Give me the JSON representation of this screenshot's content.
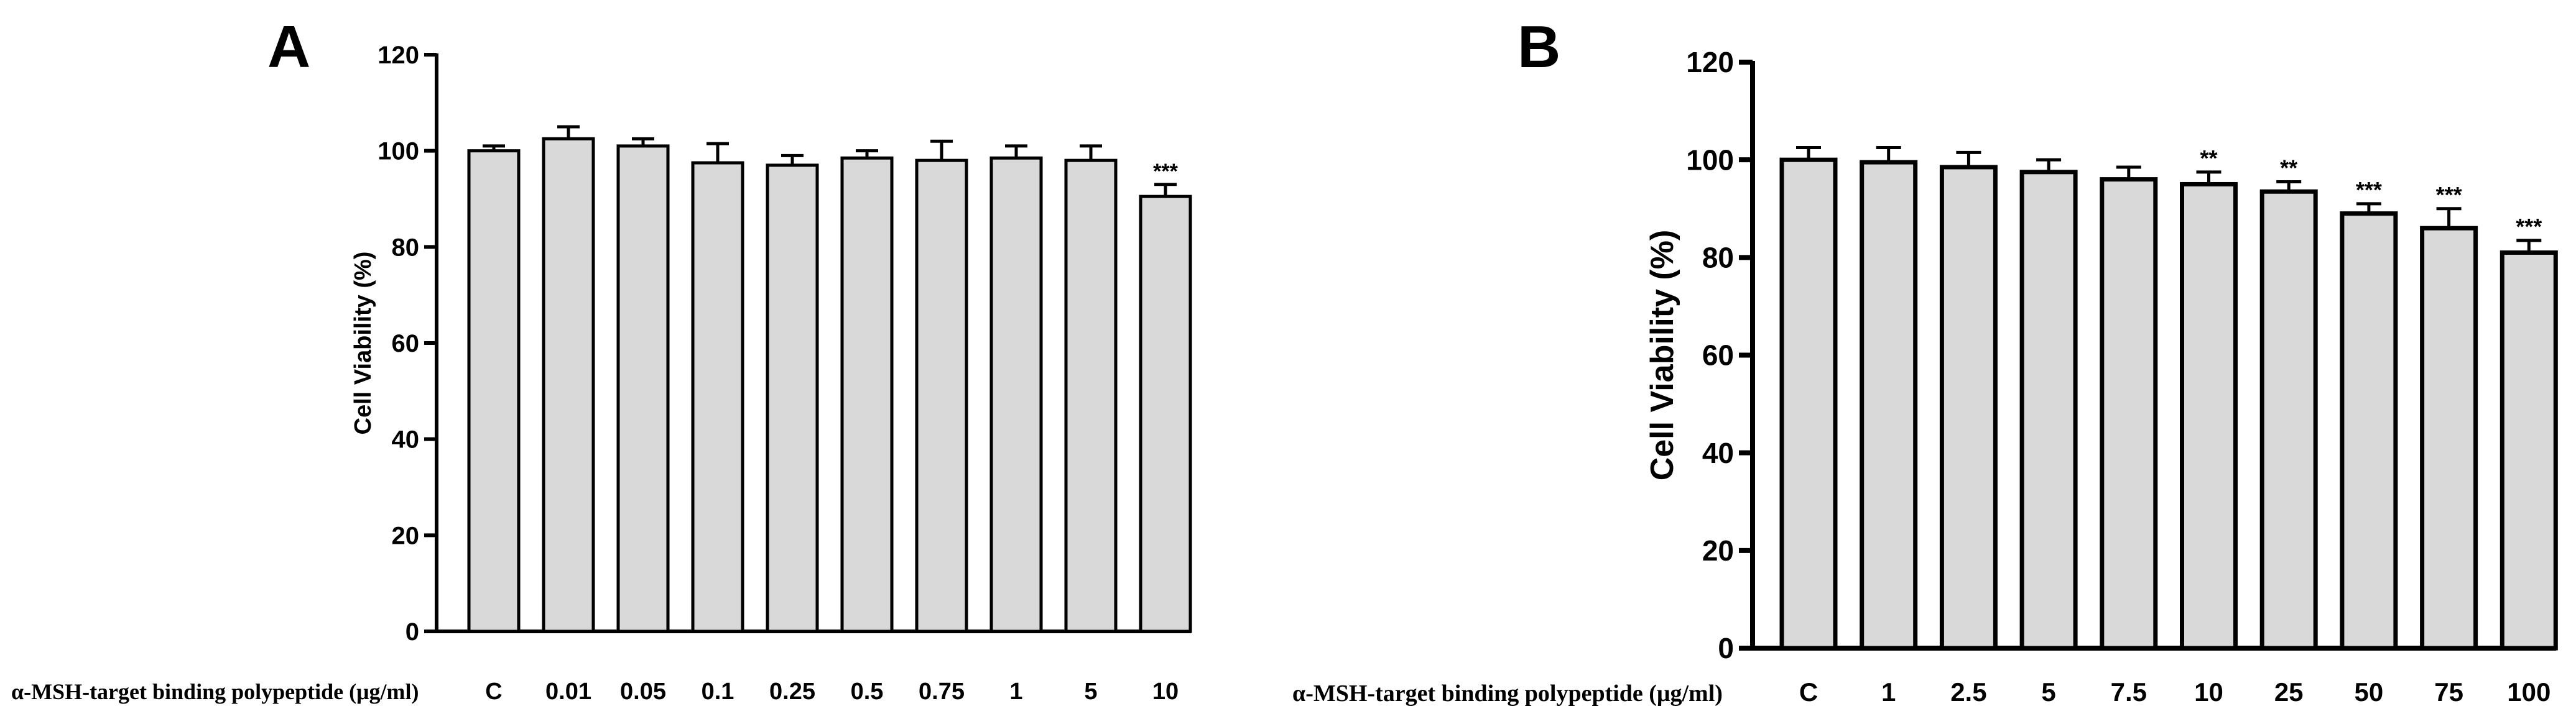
{
  "chart_data": [
    {
      "type": "bar",
      "panel": "A",
      "ylabel": "Cell Viability (%)",
      "xlabel": "α-MSH-target binding polypeptide  (μg/ml)",
      "ylim": [
        0,
        120
      ],
      "yticks": [
        0,
        20,
        40,
        60,
        80,
        100,
        120
      ],
      "categories": [
        "C",
        "0.01",
        "0.05",
        "0.1",
        "0.25",
        "0.5",
        "0.75",
        "1",
        "5",
        "10"
      ],
      "values": [
        100,
        102.5,
        101,
        97.5,
        97,
        98.5,
        98,
        98.5,
        98,
        90.5
      ],
      "errors": [
        1,
        2.5,
        1.5,
        4,
        2,
        1.5,
        4,
        2.5,
        3,
        2.5
      ],
      "significance": [
        "",
        "",
        "",
        "",
        "",
        "",
        "",
        "",
        "",
        "***"
      ],
      "bar_color": "#d9d9d9",
      "edge_color": "#000000"
    },
    {
      "type": "bar",
      "panel": "B",
      "ylabel": "Cell Viability (%)",
      "xlabel": "α-MSH-target binding polypeptide  (μg/ml)",
      "ylim": [
        0,
        120
      ],
      "yticks": [
        0,
        20,
        40,
        60,
        80,
        100,
        120
      ],
      "categories": [
        "C",
        "1",
        "2.5",
        "5",
        "7.5",
        "10",
        "25",
        "50",
        "75",
        "100"
      ],
      "values": [
        100,
        99.5,
        98.5,
        97.5,
        96,
        95,
        93.5,
        89,
        86,
        81
      ],
      "errors": [
        2.5,
        3,
        3,
        2.5,
        2.5,
        2.5,
        2,
        2,
        4,
        2.5
      ],
      "significance": [
        "",
        "",
        "",
        "",
        "",
        "**",
        "**",
        "***",
        "***",
        "***"
      ],
      "bar_color": "#d9d9d9",
      "edge_color": "#000000"
    }
  ]
}
